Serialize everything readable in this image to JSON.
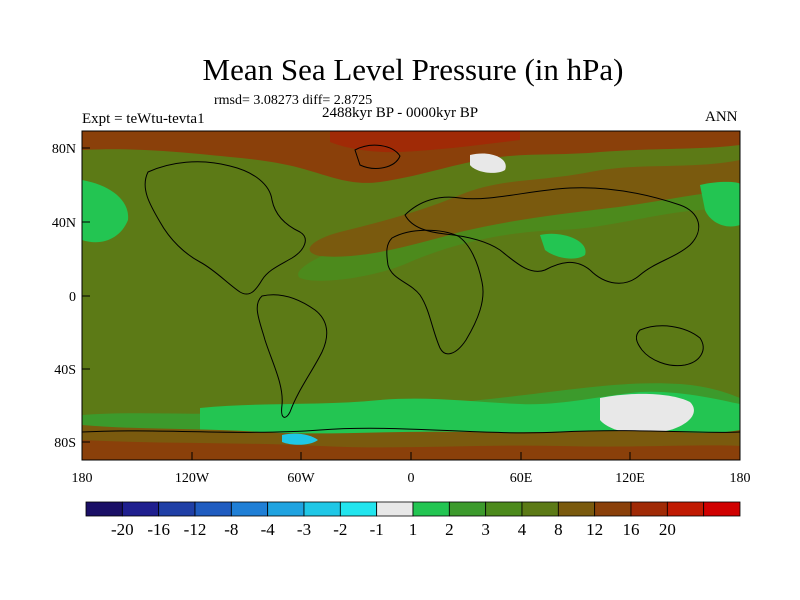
{
  "title": "Mean Sea Level Pressure (in hPa)",
  "rmsd_text": "rmsd= 3.08273 diff= 2.8725",
  "experiment": "Expt = teWtu-tevta1",
  "period": "2488kyr BP - 0000kyr BP",
  "season": "ANN",
  "lat_ticks": [
    "80N",
    "40N",
    "0",
    "40S",
    "80S"
  ],
  "lon_ticks": [
    "180",
    "120W",
    "60W",
    "0",
    "60E",
    "120E",
    "180"
  ],
  "colorbar": {
    "colors": [
      "#1a0f66",
      "#1f1f8f",
      "#1f3fa6",
      "#1f5cc0",
      "#1f7fd6",
      "#1fa3e0",
      "#1fc7e6",
      "#22e5ee",
      "#e8e8e8",
      "#23c552",
      "#3c9a2c",
      "#4c8a1c",
      "#5c7a16",
      "#7a5a0e",
      "#8a400a",
      "#a02a06",
      "#c01a02",
      "#d00000"
    ],
    "labels": [
      "-20",
      "-16",
      "-12",
      "-8",
      "-4",
      "-3",
      "-2",
      "-1",
      "1",
      "2",
      "3",
      "4",
      "8",
      "12",
      "16",
      "20"
    ]
  }
}
